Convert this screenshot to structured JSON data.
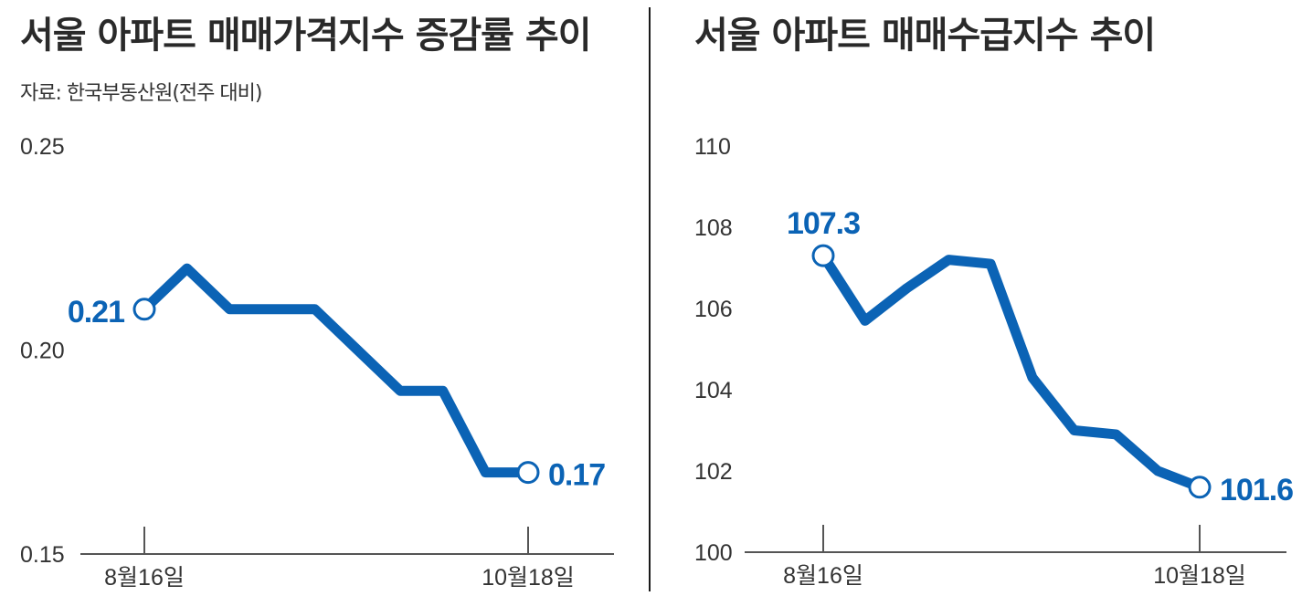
{
  "left": {
    "title": "서울 아파트 매매가격지수 증감률 추이",
    "source": "자료: 한국부동산원(전주 대비)"
  },
  "right": {
    "title": "서울 아파트 매매수급지수 추이"
  },
  "colors": {
    "line": "#0b63b5",
    "axis": "#555555",
    "text": "#333333"
  },
  "chart_data": [
    {
      "type": "line",
      "title": "서울 아파트 매매가격지수 증감률 추이",
      "subtitle": "자료: 한국부동산원(전주 대비)",
      "ylim": [
        0.15,
        0.25
      ],
      "yticks": [
        "0.25",
        "0.20",
        "0.15"
      ],
      "xtick_labels": [
        "8월16일",
        "10월18일"
      ],
      "grid": false,
      "series": [
        {
          "values": [
            0.21,
            0.22,
            0.21,
            0.21,
            0.21,
            0.2,
            0.19,
            0.19,
            0.17,
            0.17
          ]
        }
      ],
      "annotations": [
        {
          "index": 0,
          "label": "0.21"
        },
        {
          "index": 9,
          "label": "0.17"
        }
      ]
    },
    {
      "type": "line",
      "title": "서울 아파트 매매수급지수 추이",
      "ylim": [
        100,
        110
      ],
      "yticks": [
        "110",
        "108",
        "106",
        "104",
        "102",
        "100"
      ],
      "xtick_labels": [
        "8월16일",
        "10월18일"
      ],
      "grid": false,
      "series": [
        {
          "values": [
            107.3,
            105.7,
            106.5,
            107.2,
            107.1,
            104.3,
            103.0,
            102.9,
            102.0,
            101.6
          ]
        }
      ],
      "annotations": [
        {
          "index": 0,
          "label": "107.3"
        },
        {
          "index": 9,
          "label": "101.6"
        }
      ]
    }
  ]
}
